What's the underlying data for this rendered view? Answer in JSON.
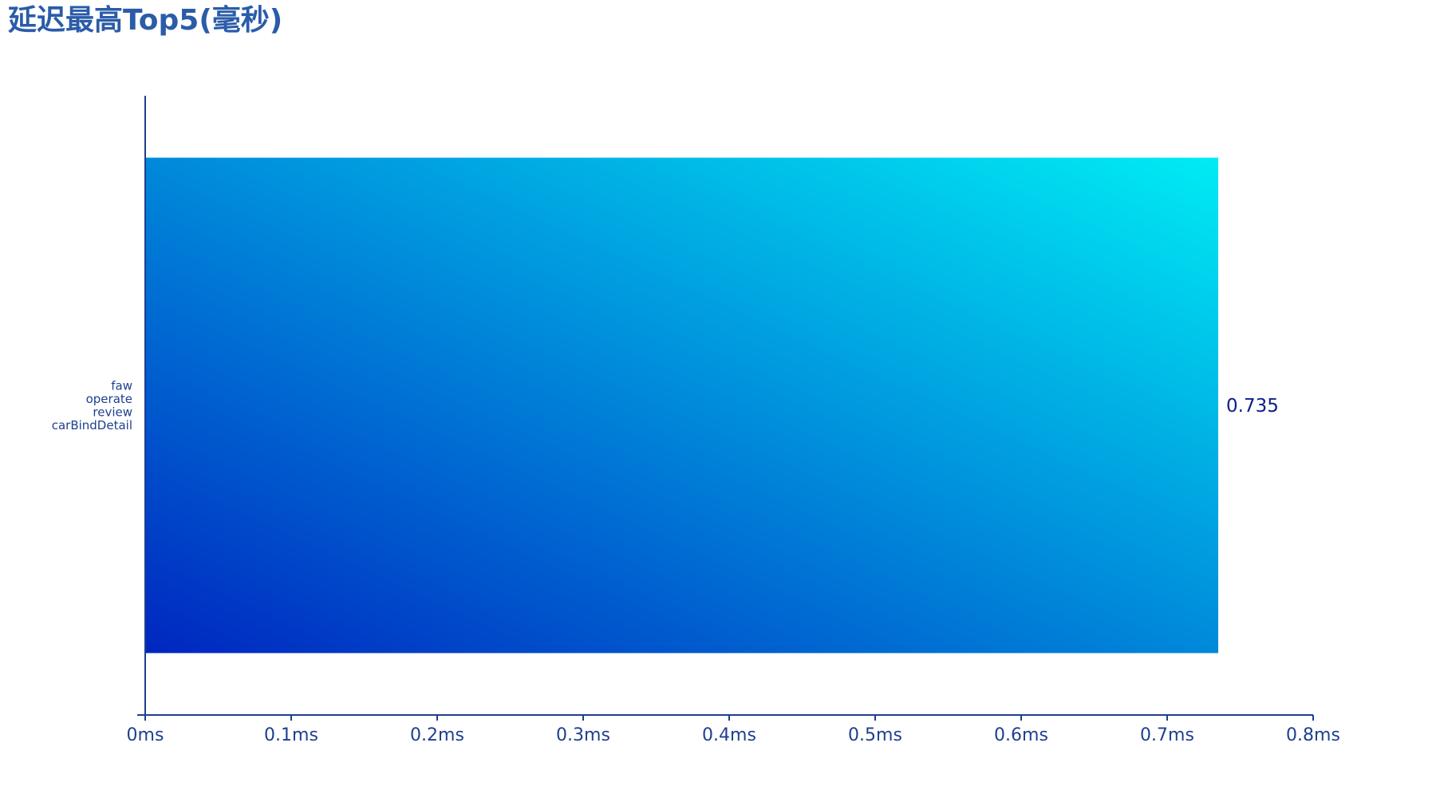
{
  "title": "延迟最高Top5(毫秒)",
  "chart_data": {
    "type": "bar",
    "orientation": "horizontal",
    "title": "延迟最高Top5(毫秒)",
    "categories": [
      [
        "faw",
        "operate",
        "review",
        "carBindDetail"
      ]
    ],
    "values": [
      0.735
    ],
    "value_labels": [
      "0.735"
    ],
    "x_ticks": [
      "0ms",
      "0.1ms",
      "0.2ms",
      "0.3ms",
      "0.4ms",
      "0.5ms",
      "0.6ms",
      "0.7ms",
      "0.8ms"
    ],
    "x_tick_values": [
      0,
      0.1,
      0.2,
      0.3,
      0.4,
      0.5,
      0.6,
      0.7,
      0.8
    ],
    "xlim": [
      0,
      0.8
    ],
    "xlabel": "",
    "ylabel": "",
    "grid": false,
    "colors": {
      "bar_gradient_start": "#0026c0",
      "bar_gradient_end": "#00ecf4",
      "axis": "#1f3f8f",
      "title": "#2a5ca8",
      "value_label": "#0b1f8a"
    }
  }
}
